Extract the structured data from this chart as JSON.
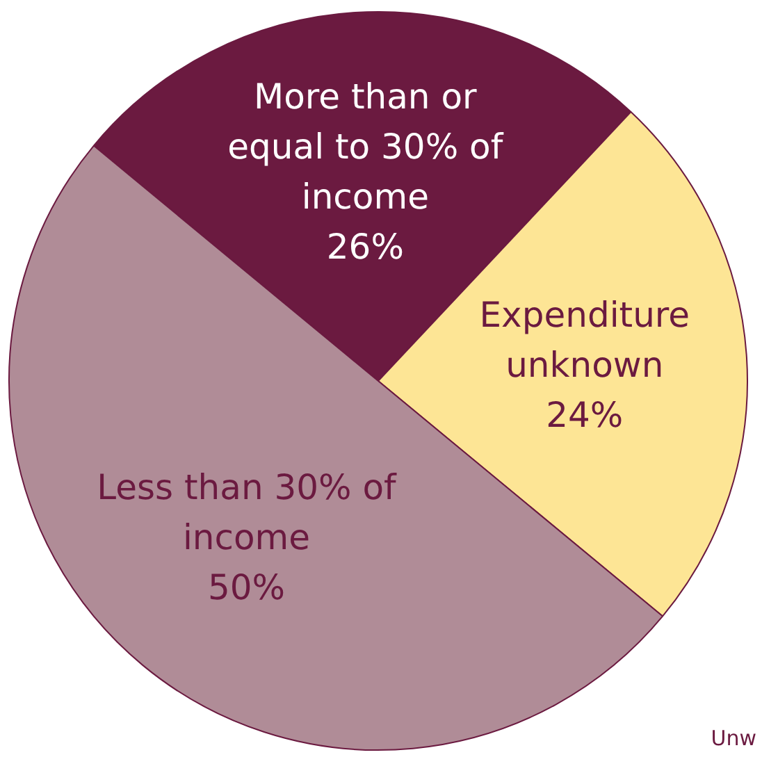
{
  "chart_data": {
    "type": "pie",
    "categories": [
      "More than or equal to 30% of income",
      "Expenditure unknown",
      "Less than 30% of income"
    ],
    "values": [
      26,
      24,
      50
    ],
    "colors": [
      "#6b1a40",
      "#fde595",
      "#b08c97"
    ],
    "value_labels": [
      "26%",
      "24%",
      "50%"
    ],
    "annotations": [
      "Unw"
    ]
  }
}
